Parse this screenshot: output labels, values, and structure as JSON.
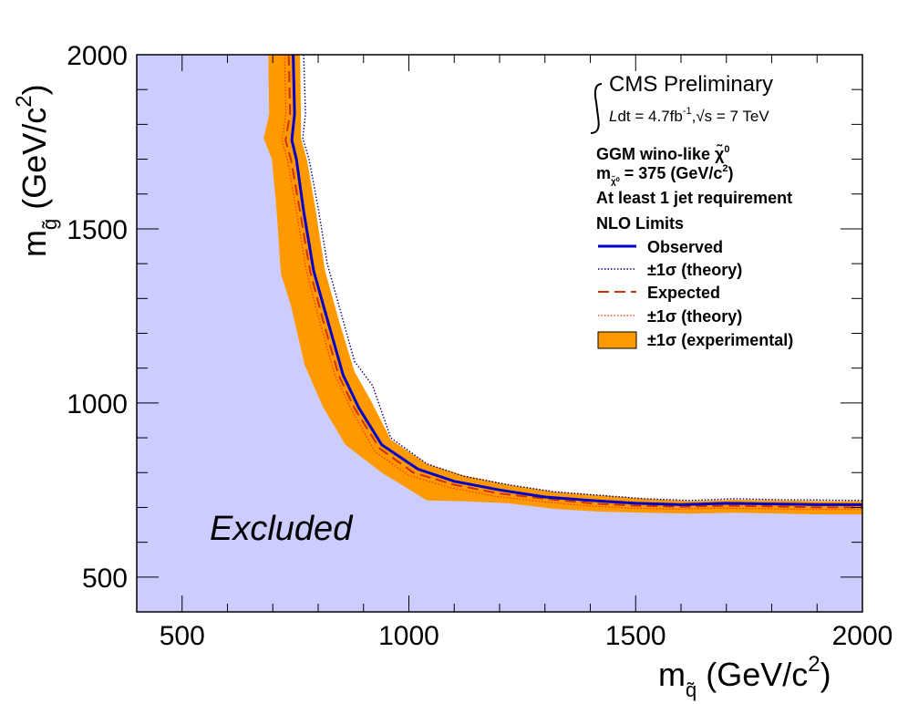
{
  "chart_data": {
    "type": "line",
    "title": "",
    "xlabel": "m",
    "xlabel_sub": "q̃",
    "xlabel_unit": "(GeV/c",
    "ylabel": "m",
    "ylabel_sub": "g̃",
    "ylabel_unit": "(GeV/c",
    "unit_power": "2",
    "unit_close": ")",
    "xlim": [
      400,
      2000
    ],
    "ylim": [
      400,
      2000
    ],
    "xticks": [
      500,
      1000,
      1500,
      2000
    ],
    "yticks": [
      500,
      1000,
      1500,
      2000
    ],
    "grid": false,
    "legend_position": "top-right",
    "excluded_label": "Excluded",
    "annotations": {
      "experiment": "CMS Preliminary",
      "lumi_prefix": "dt = 4.7fb",
      "lumi_exp": "-1",
      "lumi_suffix": ",√s = 7 TeV",
      "model_line1": "GGM wino-like χ̃",
      "model_line1_sup": "0",
      "model_line2": "m",
      "model_line2_sub": "χ̃⁰",
      "model_line2_rest": " = 375 (GeV/c",
      "model_line2_sup": "2",
      "model_line2_end": ")",
      "model_line3": "At least 1 jet requirement",
      "limits_header": "NLO Limits"
    },
    "series": [
      {
        "name": "Observed",
        "style": "solid",
        "color": "#0000cc",
        "points": [
          [
            745,
            2000
          ],
          [
            748,
            1830
          ],
          [
            742,
            1755
          ],
          [
            752,
            1700
          ],
          [
            768,
            1550
          ],
          [
            790,
            1380
          ],
          [
            820,
            1240
          ],
          [
            855,
            1080
          ],
          [
            890,
            985
          ],
          [
            940,
            880
          ],
          [
            1020,
            810
          ],
          [
            1100,
            775
          ],
          [
            1200,
            750
          ],
          [
            1300,
            730
          ],
          [
            1400,
            720
          ],
          [
            1500,
            712
          ],
          [
            1600,
            708
          ],
          [
            1700,
            712
          ],
          [
            1800,
            710
          ],
          [
            1900,
            708
          ],
          [
            2000,
            708
          ]
        ]
      },
      {
        "name": "±1σ (theory)",
        "style": "dotted",
        "color": "#000080",
        "points": [
          [
            768,
            2000
          ],
          [
            772,
            1830
          ],
          [
            766,
            1760
          ],
          [
            780,
            1700
          ],
          [
            800,
            1560
          ],
          [
            820,
            1400
          ],
          [
            850,
            1260
          ],
          [
            880,
            1120
          ],
          [
            920,
            1050
          ],
          [
            960,
            900
          ],
          [
            1040,
            825
          ],
          [
            1120,
            790
          ],
          [
            1220,
            765
          ],
          [
            1320,
            745
          ],
          [
            1420,
            735
          ],
          [
            1520,
            725
          ],
          [
            1620,
            720
          ],
          [
            1720,
            725
          ],
          [
            1820,
            722
          ],
          [
            2000,
            720
          ]
        ]
      },
      {
        "name": "Expected",
        "style": "dashed",
        "color": "#cc3300",
        "points": [
          [
            735,
            2000
          ],
          [
            738,
            1830
          ],
          [
            728,
            1755
          ],
          [
            740,
            1700
          ],
          [
            760,
            1550
          ],
          [
            782,
            1380
          ],
          [
            810,
            1240
          ],
          [
            845,
            1080
          ],
          [
            880,
            985
          ],
          [
            935,
            870
          ],
          [
            1010,
            800
          ],
          [
            1100,
            765
          ],
          [
            1200,
            740
          ],
          [
            1300,
            725
          ],
          [
            1400,
            712
          ],
          [
            1500,
            705
          ],
          [
            1600,
            702
          ],
          [
            1700,
            705
          ],
          [
            1800,
            703
          ],
          [
            1900,
            700
          ],
          [
            2000,
            700
          ]
        ]
      },
      {
        "name": "±1σ (theory)",
        "style": "dotted",
        "color": "#ff3300",
        "points": [
          [
            726,
            2000
          ],
          [
            729,
            1830
          ],
          [
            720,
            1755
          ],
          [
            732,
            1700
          ],
          [
            752,
            1550
          ],
          [
            774,
            1380
          ],
          [
            802,
            1240
          ],
          [
            837,
            1080
          ],
          [
            872,
            985
          ],
          [
            925,
            860
          ],
          [
            1000,
            792
          ],
          [
            1090,
            757
          ],
          [
            1190,
            732
          ],
          [
            1290,
            717
          ],
          [
            1390,
            705
          ],
          [
            1490,
            698
          ],
          [
            1590,
            695
          ],
          [
            1690,
            698
          ],
          [
            1790,
            696
          ],
          [
            1890,
            694
          ],
          [
            2000,
            694
          ]
        ]
      },
      {
        "name": "±1σ (experimental)",
        "style": "band",
        "color": "#ff9900",
        "upper": [
          [
            760,
            2000
          ],
          [
            762,
            1830
          ],
          [
            762,
            1760
          ],
          [
            775,
            1700
          ],
          [
            795,
            1550
          ],
          [
            815,
            1380
          ],
          [
            845,
            1240
          ],
          [
            880,
            1090
          ],
          [
            915,
            1010
          ],
          [
            960,
            895
          ],
          [
            1040,
            825
          ],
          [
            1120,
            792
          ],
          [
            1220,
            765
          ],
          [
            1320,
            745
          ],
          [
            1420,
            735
          ],
          [
            1520,
            725
          ],
          [
            1620,
            718
          ],
          [
            1720,
            722
          ],
          [
            1820,
            720
          ],
          [
            1920,
            718
          ],
          [
            2000,
            718
          ]
        ],
        "lower": [
          [
            690,
            2000
          ],
          [
            692,
            1830
          ],
          [
            680,
            1760
          ],
          [
            698,
            1700
          ],
          [
            708,
            1560
          ],
          [
            718,
            1370
          ],
          [
            740,
            1280
          ],
          [
            770,
            1110
          ],
          [
            810,
            990
          ],
          [
            860,
            880
          ],
          [
            940,
            800
          ],
          [
            1040,
            720
          ],
          [
            1120,
            718
          ],
          [
            1220,
            712
          ],
          [
            1320,
            696
          ],
          [
            1420,
            688
          ],
          [
            1520,
            685
          ],
          [
            1620,
            682
          ],
          [
            1720,
            685
          ],
          [
            1820,
            682
          ],
          [
            1920,
            680
          ],
          [
            2000,
            680
          ]
        ]
      }
    ]
  },
  "colors": {
    "excluded_fill": "#ccccff",
    "observed": "#0000cc",
    "observed_theory": "#000080",
    "expected": "#cc3300",
    "expected_theory": "#ff3300",
    "band": "#ff9900"
  }
}
